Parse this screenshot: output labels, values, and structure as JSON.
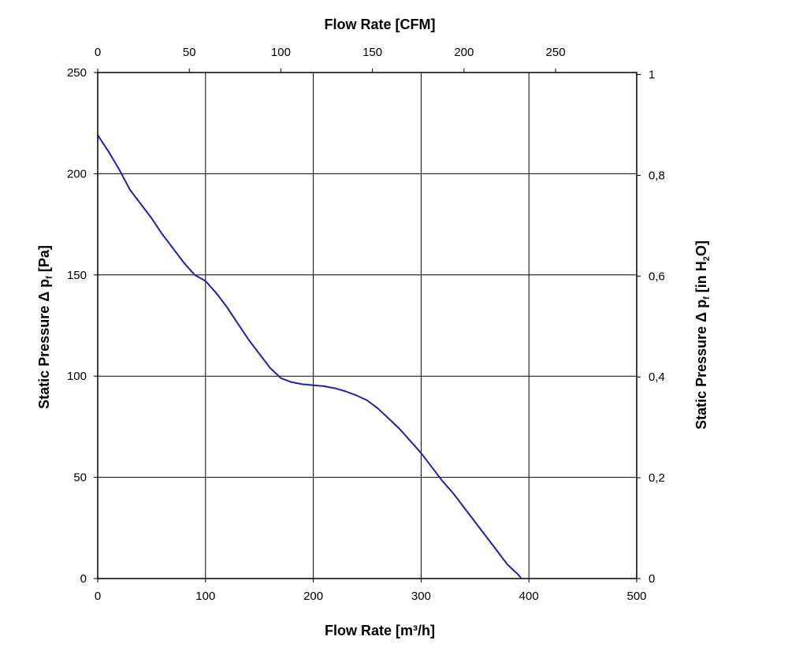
{
  "chart_data": {
    "type": "line",
    "title": "",
    "xlabel": "Flow Rate [m³/h]",
    "xlabel2": "Flow Rate [CFM]",
    "ylabel": {
      "pre": "Static Pressure Δ p",
      "sub": "f",
      "post": " [Pa]"
    },
    "ylabel2": {
      "pre": "Static Pressure Δ p",
      "sub": "f",
      "mid": " [in H",
      "sub2": "2",
      "post": "O]"
    },
    "xlim": [
      0,
      500
    ],
    "ylim": [
      0,
      250
    ],
    "x2lim": [
      0,
      294.3
    ],
    "y2lim": [
      0,
      1.004
    ],
    "xticks": [
      "0",
      "100",
      "200",
      "300",
      "400",
      "500"
    ],
    "yticks": [
      "0",
      "50",
      "100",
      "150",
      "200",
      "250"
    ],
    "x2ticks": [
      "0",
      "50",
      "100",
      "150",
      "200",
      "250"
    ],
    "y2ticks": [
      "0",
      "0,2",
      "0,4",
      "0,6",
      "0,8",
      "1"
    ],
    "grid": true,
    "series": [
      {
        "color": "#1f1fb4",
        "x": [
          0,
          10,
          20,
          30,
          40,
          50,
          60,
          70,
          80,
          90,
          100,
          110,
          120,
          130,
          140,
          150,
          160,
          170,
          180,
          190,
          200,
          210,
          220,
          230,
          240,
          250,
          260,
          270,
          280,
          290,
          300,
          310,
          320,
          330,
          340,
          350,
          360,
          370,
          380,
          390,
          393
        ],
        "y": [
          219,
          211,
          202,
          192,
          185,
          178,
          170,
          163,
          156,
          150,
          147,
          141,
          134,
          126,
          118,
          111,
          104,
          99,
          97,
          96,
          95.5,
          95,
          94,
          92.5,
          90.5,
          88,
          84,
          79,
          74,
          68,
          62,
          55,
          48,
          42,
          35,
          28,
          21,
          14,
          7,
          2,
          0
        ]
      }
    ]
  }
}
